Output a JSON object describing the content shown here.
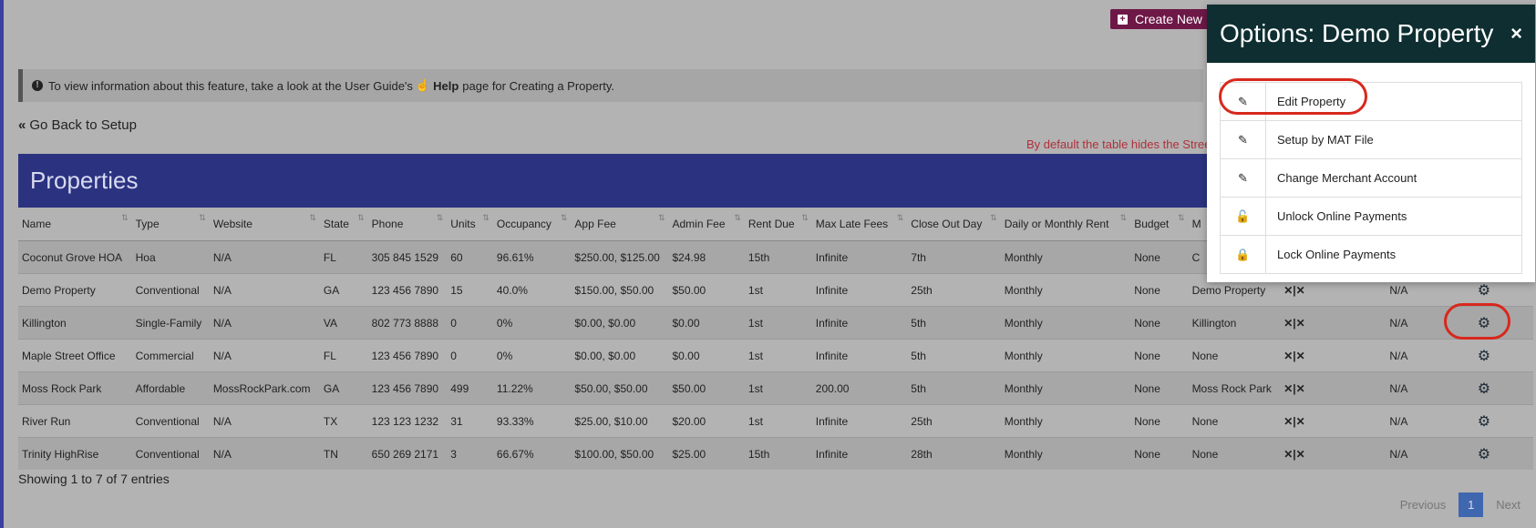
{
  "toolbar": {
    "create_label": "Create New"
  },
  "info": {
    "prefix": "To view information about this feature, take a look at the User Guide's",
    "help": "Help",
    "suffix": "page for Creating a Property."
  },
  "back_label": "Go Back to Setup",
  "note": "By default the table hides the Stree",
  "panel_title": "Properties",
  "columns": [
    "Name",
    "Type",
    "Website",
    "State",
    "Phone",
    "Units",
    "Occupancy",
    "App Fee",
    "Admin Fee",
    "Rent Due",
    "Max Late Fees",
    "Close Out Day",
    "Daily or Monthly Rent",
    "Budget",
    "M",
    "",
    "",
    ""
  ],
  "rows": [
    [
      "Coconut Grove HOA",
      "Hoa",
      "N/A",
      "FL",
      "305 845 1529",
      "60",
      "96.61%",
      "$250.00, $125.00",
      "$24.98",
      "15th",
      "Infinite",
      "7th",
      "Monthly",
      "None",
      "C",
      "",
      "",
      ""
    ],
    [
      "Demo Property",
      "Conventional",
      "N/A",
      "GA",
      "123 456 7890",
      "15",
      "40.0%",
      "$150.00, $50.00",
      "$50.00",
      "1st",
      "Infinite",
      "25th",
      "Monthly",
      "None",
      "Demo Property",
      "✕|✕",
      "N/A",
      "gear"
    ],
    [
      "Killington",
      "Single-Family",
      "N/A",
      "VA",
      "802 773 8888",
      "0",
      "0%",
      "$0.00, $0.00",
      "$0.00",
      "1st",
      "Infinite",
      "5th",
      "Monthly",
      "None",
      "Killington",
      "✕|✕",
      "N/A",
      "gear"
    ],
    [
      "Maple Street Office",
      "Commercial",
      "N/A",
      "FL",
      "123 456 7890",
      "0",
      "0%",
      "$0.00, $0.00",
      "$0.00",
      "1st",
      "Infinite",
      "5th",
      "Monthly",
      "None",
      "None",
      "✕|✕",
      "N/A",
      "gear"
    ],
    [
      "Moss Rock Park",
      "Affordable",
      "MossRockPark.com",
      "GA",
      "123 456 7890",
      "499",
      "11.22%",
      "$50.00, $50.00",
      "$50.00",
      "1st",
      "200.00",
      "5th",
      "Monthly",
      "None",
      "Moss Rock Park",
      "✕|✕",
      "N/A",
      "gear"
    ],
    [
      "River Run",
      "Conventional",
      "N/A",
      "TX",
      "123 123 1232",
      "31",
      "93.33%",
      "$25.00, $10.00",
      "$20.00",
      "1st",
      "Infinite",
      "25th",
      "Monthly",
      "None",
      "None",
      "✕|✕",
      "N/A",
      "gear"
    ],
    [
      "Trinity HighRise",
      "Conventional",
      "N/A",
      "TN",
      "650 269 2171",
      "3",
      "66.67%",
      "$100.00, $50.00",
      "$25.00",
      "15th",
      "Infinite",
      "28th",
      "Monthly",
      "None",
      "None",
      "✕|✕",
      "N/A",
      "gear"
    ]
  ],
  "showing": "Showing 1 to 7 of 7 entries",
  "pager": {
    "prev": "Previous",
    "page": "1",
    "next": "Next"
  },
  "modal": {
    "title": "Options: Demo Property",
    "close": "×",
    "options": [
      {
        "label": "Edit Property",
        "icon": "edit-icon"
      },
      {
        "label": "Setup by MAT File",
        "icon": "edit-icon"
      },
      {
        "label": "Change Merchant Account",
        "icon": "edit-icon"
      },
      {
        "label": "Unlock Online Payments",
        "icon": "unlock-icon"
      },
      {
        "label": "Lock Online Payments",
        "icon": "lock-icon"
      }
    ]
  },
  "colors": {
    "panel_head": "#2b3380",
    "modal_head": "#0e2e31",
    "highlight": "#d8281c",
    "create_btn": "#6e1847"
  }
}
